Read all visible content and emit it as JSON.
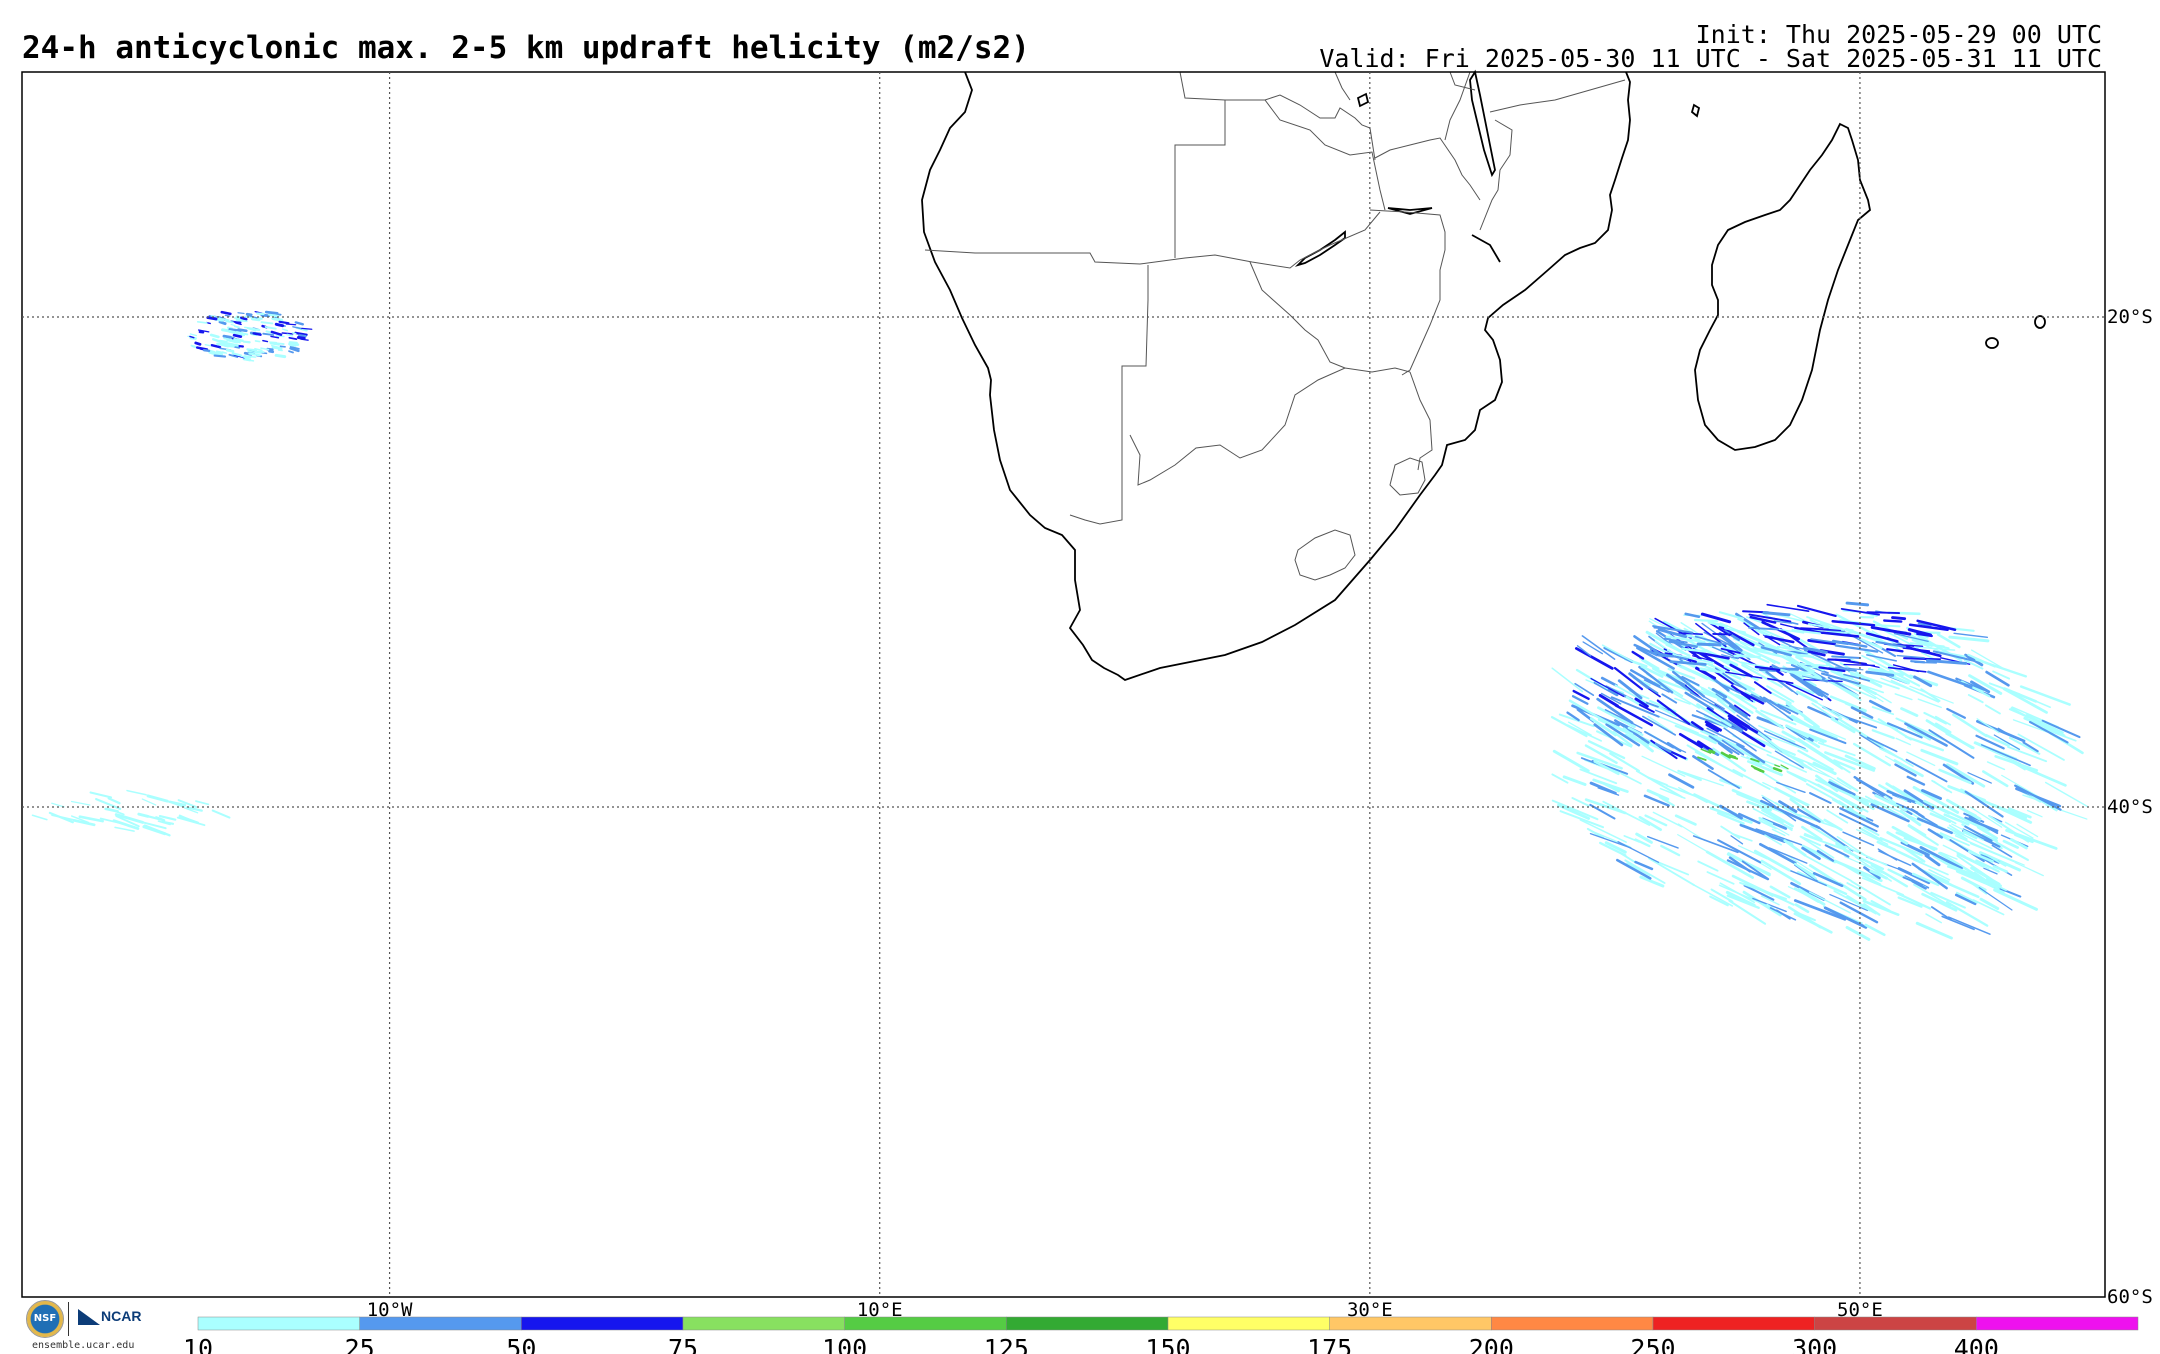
{
  "header": {
    "title": "24-h anticyclonic max. 2-5 km updraft helicity (m2/s2)",
    "init": "Init: Thu 2025-05-29 00 UTC",
    "valid": "Valid: Fri 2025-05-30 11 UTC - Sat 2025-05-31 11 UTC"
  },
  "map": {
    "lon_range": [
      -25,
      60
    ],
    "lat_range": [
      -60,
      -10
    ],
    "longitude_labels": [
      "10°W",
      "10°E",
      "30°E",
      "50°E"
    ],
    "longitudes": [
      -10,
      10,
      30,
      50
    ],
    "latitude_labels": [
      "20°S",
      "40°S",
      "60°S"
    ],
    "latitudes": [
      -20,
      -40,
      -60
    ],
    "gridline_style": "dotted"
  },
  "colorbar": {
    "levels": [
      "10",
      "25",
      "50",
      "75",
      "100",
      "125",
      "150",
      "175",
      "200",
      "250",
      "300",
      "400"
    ],
    "colors": [
      "#aaffff",
      "#5599ee",
      "#1616ee",
      "#88e060",
      "#55cc44",
      "#33aa33",
      "#ffff66",
      "#ffc766",
      "#ff8844",
      "#ee2222",
      "#cc4444",
      "#ee11ee"
    ]
  },
  "logos": {
    "nsf": "NSF",
    "ncar": "NCAR",
    "url": "ensemble.ucar.edu"
  }
}
